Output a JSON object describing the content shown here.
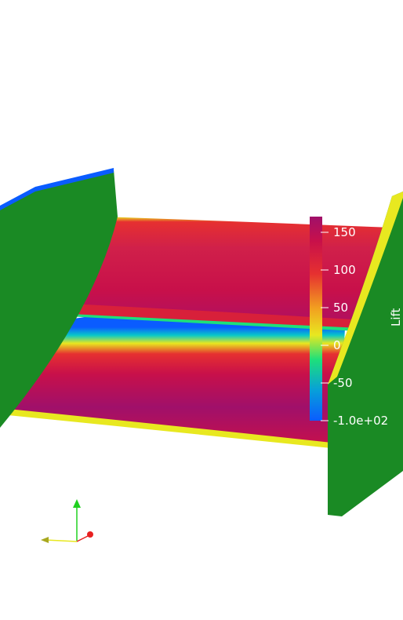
{
  "colorbar": {
    "title": "Lift",
    "tick_labels": [
      "150",
      "100",
      "50",
      "0",
      "-50",
      "-1.0e+02"
    ],
    "tick_values": [
      150,
      100,
      50,
      0,
      -50,
      -100
    ],
    "range": [
      -100,
      170
    ],
    "colors": [
      "#0a5cff",
      "#08c8c8",
      "#1ee07a",
      "#e8e820",
      "#f2a020",
      "#e63030",
      "#c8104a",
      "#a0106a"
    ]
  },
  "scene": {
    "background": "#ffffff",
    "endplate_color": "#1a8a24"
  },
  "orientation_axes": {
    "x_color": "#e82020",
    "y_color": "#20d020",
    "z_color": "#e8e820"
  }
}
